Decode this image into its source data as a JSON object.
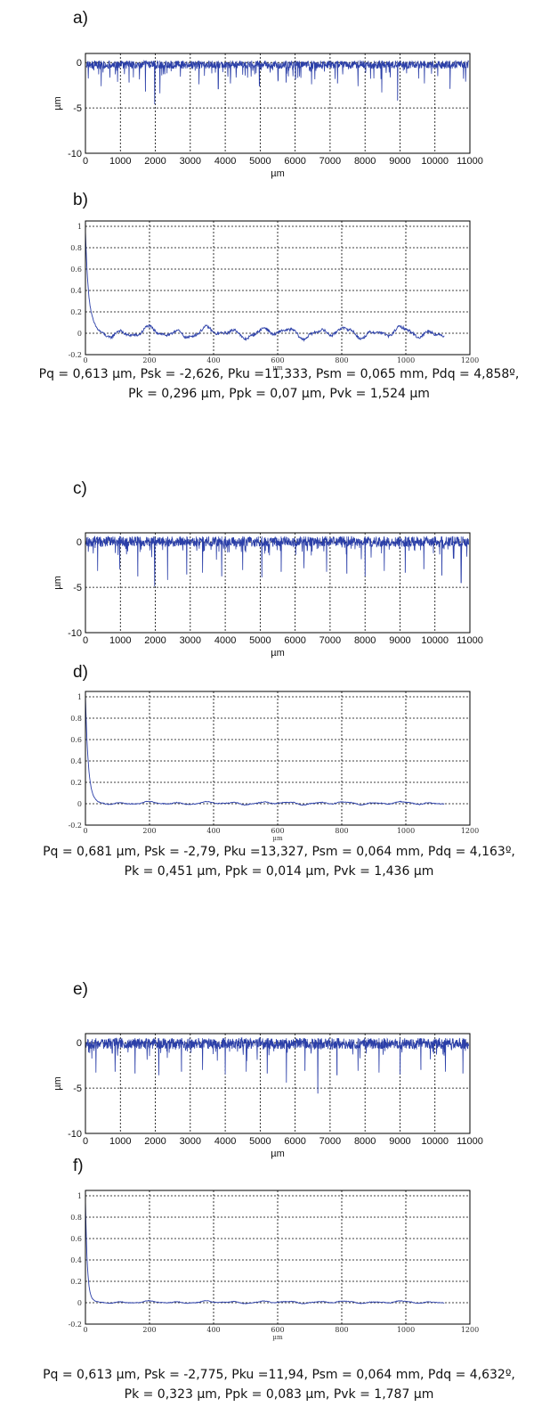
{
  "panels": [
    {
      "label": "a)"
    },
    {
      "label": "b)"
    },
    {
      "label": "c)"
    },
    {
      "label": "d)"
    },
    {
      "label": "e)"
    },
    {
      "label": "f)"
    }
  ],
  "params": [
    {
      "line1": "Pq = 0,613 µm, Psk = -2,626, Pku =11,333, Psm = 0,065 mm, Pdq = 4,858º,",
      "line2": "Pk = 0,296 µm, Ppk = 0,07 µm, Pvk = 1,524 µm"
    },
    {
      "line1": "Pq = 0,681 µm, Psk = -2,79, Pku =13,327, Psm = 0,064 mm, Pdq = 4,163º,",
      "line2": "Pk = 0,451 µm, Ppk = 0,014 µm, Pvk = 1,436 µm"
    },
    {
      "line1": "Pq = 0,613 µm, Psk = -2,775, Pku =11,94, Psm = 0,064 mm, Pdq = 4,632º,",
      "line2": "Pk = 0,323 µm, Ppk = 0,083 µm, Pvk = 1,787 µm"
    }
  ],
  "chart_data": [
    {
      "id": "a",
      "type": "line",
      "xlabel": "µm",
      "ylabel": "µm",
      "xlim": [
        0,
        11000
      ],
      "ylim": [
        -10,
        1
      ],
      "xticks": [
        0,
        1000,
        2000,
        3000,
        4000,
        5000,
        6000,
        7000,
        8000,
        9000,
        10000,
        11000
      ],
      "yticks": [
        0,
        -5,
        -10
      ],
      "grid": true,
      "color": "#2b3fa8",
      "baseline": 0.2,
      "noise": 0.55,
      "spikes": [
        [
          450,
          -2.6
        ],
        [
          1250,
          -2.2
        ],
        [
          1720,
          -3.2
        ],
        [
          1980,
          -4.6
        ],
        [
          2130,
          -3.4
        ],
        [
          3250,
          -2.4
        ],
        [
          3800,
          -2.9
        ],
        [
          4150,
          -2.3
        ],
        [
          4980,
          -2.6
        ],
        [
          5740,
          -2.2
        ],
        [
          6470,
          -2.4
        ],
        [
          7210,
          -2.3
        ],
        [
          7800,
          -2.6
        ],
        [
          8480,
          -3.3
        ],
        [
          8930,
          -4.2
        ],
        [
          9700,
          -2.3
        ],
        [
          10430,
          -2.9
        ]
      ]
    },
    {
      "id": "b",
      "type": "line",
      "xlabel": "µm",
      "xlim": [
        0,
        1200
      ],
      "ylim": [
        -0.2,
        1.05
      ],
      "xticks": [
        0,
        200,
        400,
        600,
        800,
        1000,
        1200
      ],
      "yticks": [
        1,
        0.8,
        0.6,
        0.4,
        0.2,
        0,
        -0.2
      ],
      "grid": true,
      "color": "#2b3fa8",
      "start": 0.95,
      "decay": 10,
      "wave": 0.045,
      "xmax": 1120
    },
    {
      "id": "c",
      "type": "line",
      "xlabel": "µm",
      "ylabel": "µm",
      "xlim": [
        0,
        11000
      ],
      "ylim": [
        -10,
        1
      ],
      "xticks": [
        0,
        1000,
        2000,
        3000,
        4000,
        5000,
        6000,
        7000,
        8000,
        9000,
        10000,
        11000
      ],
      "yticks": [
        0,
        -5,
        -10
      ],
      "grid": true,
      "color": "#2b3fa8",
      "baseline": 0.6,
      "noise": 0.7,
      "spikes": [
        [
          350,
          -3.2
        ],
        [
          980,
          -3.0
        ],
        [
          1500,
          -3.8
        ],
        [
          1980,
          -4.9
        ],
        [
          2350,
          -4.2
        ],
        [
          2900,
          -3.6
        ],
        [
          3350,
          -3.4
        ],
        [
          3900,
          -3.8
        ],
        [
          4500,
          -3.1
        ],
        [
          5050,
          -3.9
        ],
        [
          5600,
          -3.3
        ],
        [
          6250,
          -2.9
        ],
        [
          6900,
          -3.3
        ],
        [
          7480,
          -3.5
        ],
        [
          8000,
          -3.8
        ],
        [
          8550,
          -3.2
        ],
        [
          9150,
          -3.4
        ],
        [
          9680,
          -3.0
        ],
        [
          10200,
          -3.7
        ],
        [
          10750,
          -4.5
        ]
      ]
    },
    {
      "id": "d",
      "type": "line",
      "xlabel": "µm",
      "xlim": [
        0,
        1200
      ],
      "ylim": [
        -0.2,
        1.05
      ],
      "xticks": [
        0,
        200,
        400,
        600,
        800,
        1000,
        1200
      ],
      "yticks": [
        1,
        0.8,
        0.6,
        0.4,
        0.2,
        0,
        -0.2
      ],
      "grid": true,
      "color": "#2b3fa8",
      "start": 1.0,
      "decay": 9,
      "wave": 0.012,
      "xmax": 1120
    },
    {
      "id": "e",
      "type": "line",
      "xlabel": "µm",
      "ylabel": "µm",
      "xlim": [
        0,
        11000
      ],
      "ylim": [
        -10,
        1
      ],
      "xticks": [
        0,
        1000,
        2000,
        3000,
        4000,
        5000,
        6000,
        7000,
        8000,
        9000,
        10000,
        11000
      ],
      "yticks": [
        0,
        -5,
        -10
      ],
      "grid": true,
      "color": "#2b3fa8",
      "baseline": 0.5,
      "noise": 0.75,
      "spikes": [
        [
          300,
          -3.3
        ],
        [
          850,
          -3.2
        ],
        [
          1420,
          -3.4
        ],
        [
          2100,
          -3.6
        ],
        [
          2750,
          -3.2
        ],
        [
          3350,
          -3.0
        ],
        [
          4000,
          -3.5
        ],
        [
          4600,
          -3.2
        ],
        [
          5200,
          -3.4
        ],
        [
          5750,
          -4.4
        ],
        [
          6280,
          -3.1
        ],
        [
          6650,
          -5.6
        ],
        [
          7200,
          -3.6
        ],
        [
          7800,
          -3.1
        ],
        [
          8400,
          -3.3
        ],
        [
          9000,
          -3.5
        ],
        [
          9600,
          -3.0
        ],
        [
          10300,
          -3.2
        ],
        [
          10800,
          -3.4
        ]
      ]
    },
    {
      "id": "f",
      "type": "line",
      "xlabel": "µm",
      "xlim": [
        0,
        1200
      ],
      "ylim": [
        -0.2,
        1.05
      ],
      "xticks": [
        0,
        200,
        400,
        600,
        800,
        1000,
        1200
      ],
      "yticks": [
        1,
        0.8,
        0.6,
        0.4,
        0.2,
        0,
        -0.2
      ],
      "grid": true,
      "color": "#2b3fa8",
      "start": 0.95,
      "decay": 6,
      "wave": 0.01,
      "xmax": 1120
    }
  ]
}
